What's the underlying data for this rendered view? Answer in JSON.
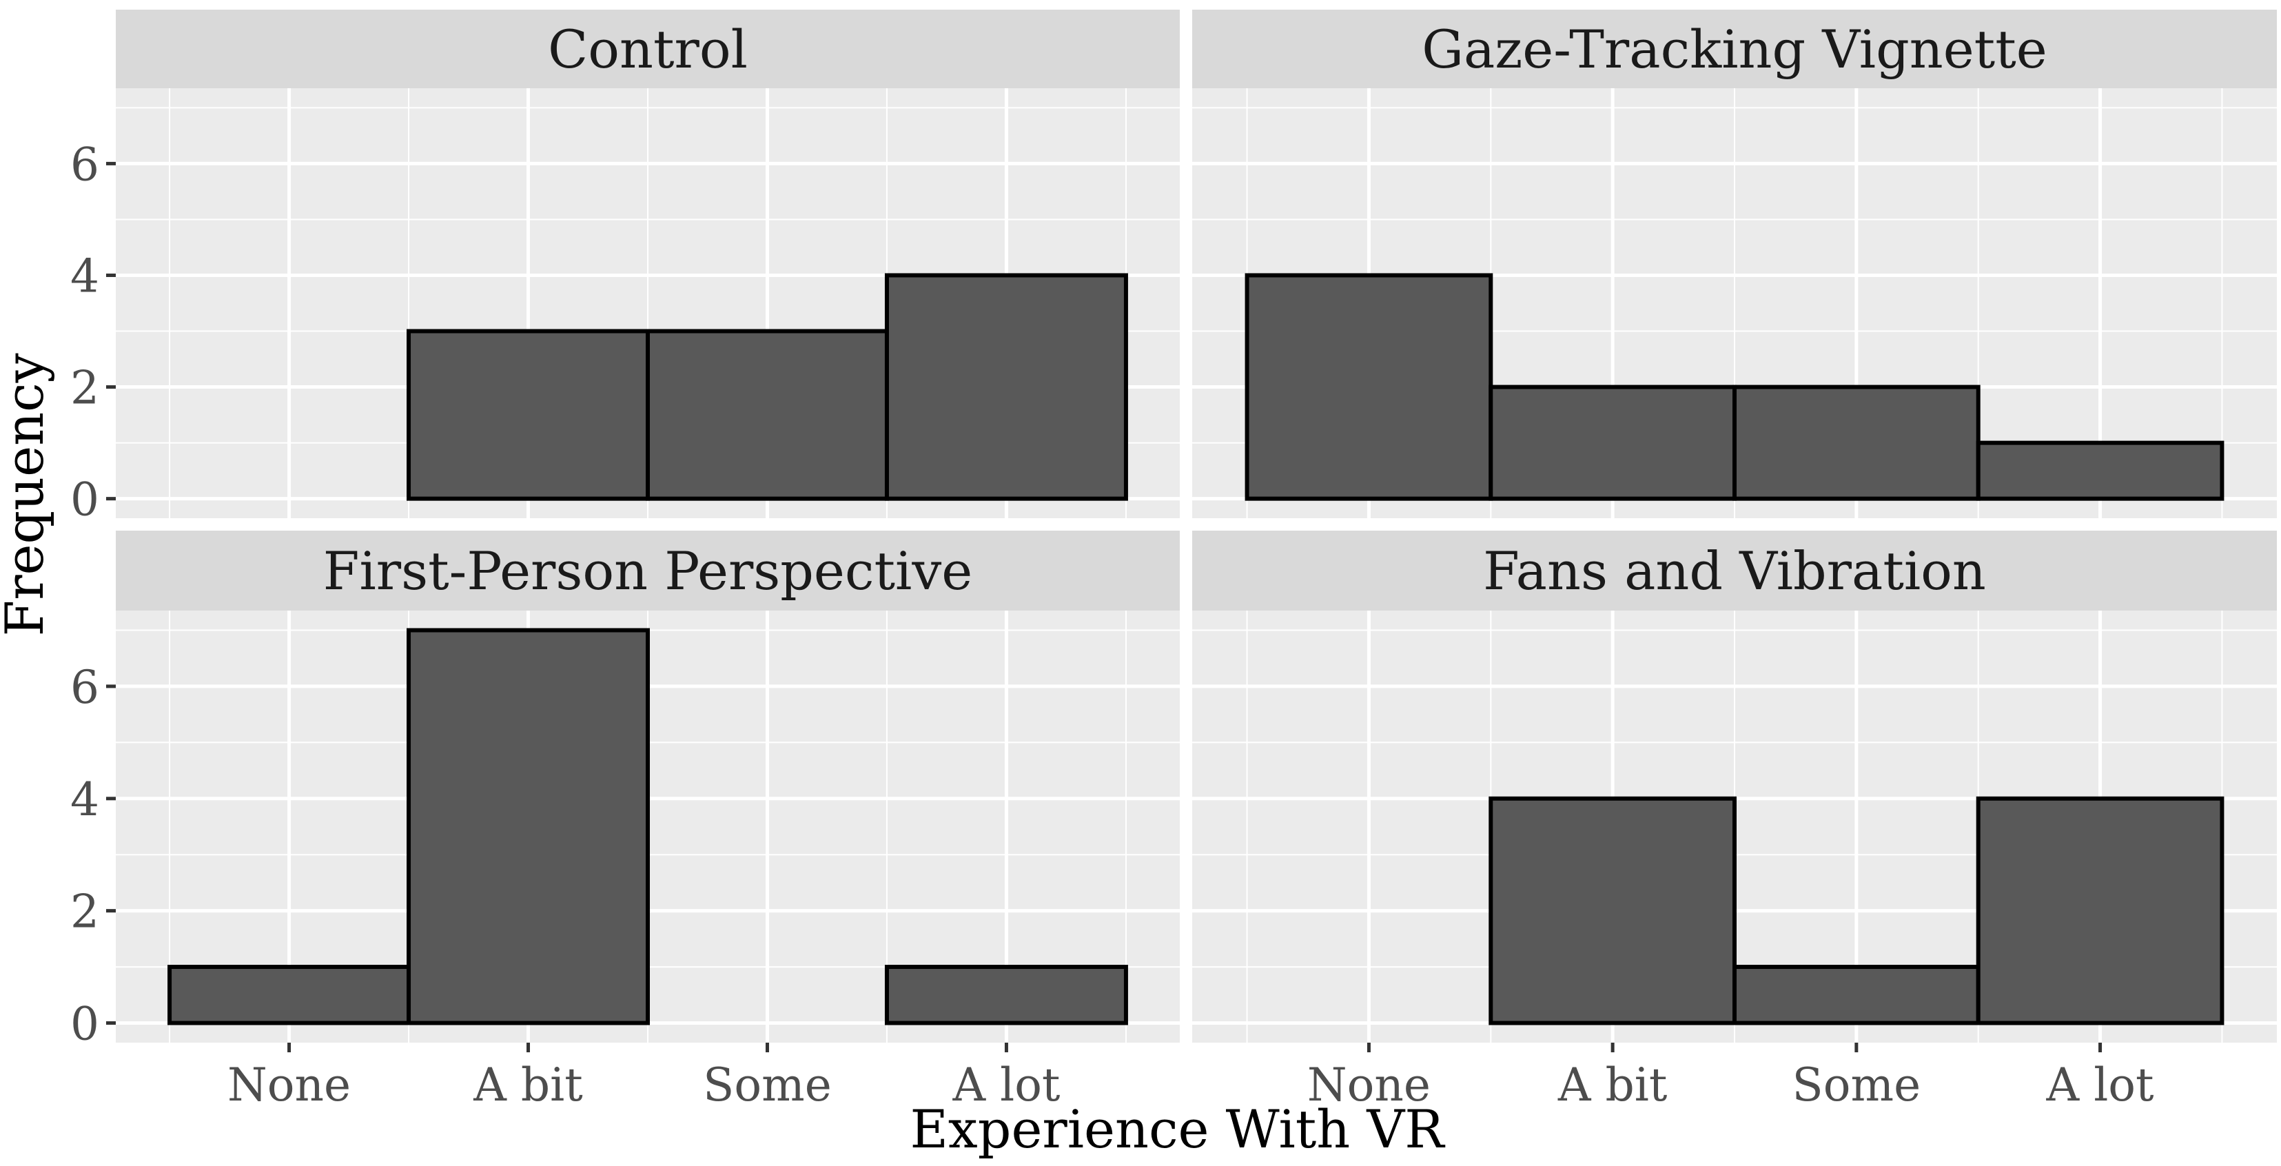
{
  "chart_data": {
    "type": "bar",
    "layout": "facet_wrap 2x2",
    "xlabel": "Experience With VR",
    "ylabel": "Frequency",
    "categories": [
      "None",
      "A bit",
      "Some",
      "A lot"
    ],
    "ylim": [
      -0.35,
      7.35
    ],
    "yticks": [
      0,
      2,
      4,
      6
    ],
    "grid": true,
    "colors": {
      "panel_bg": "#ebebeb",
      "strip_bg": "#d9d9d9",
      "grid": "#ffffff",
      "bar_fill": "#595959",
      "bar_outline": "#000000"
    },
    "panels": [
      {
        "title": "Control",
        "values": [
          0,
          3,
          3,
          4
        ]
      },
      {
        "title": "Gaze-Tracking Vignette",
        "values": [
          4,
          2,
          2,
          1
        ]
      },
      {
        "title": "First-Person Perspective",
        "values": [
          1,
          7,
          0,
          1
        ]
      },
      {
        "title": "Fans and Vibration",
        "values": [
          0,
          4,
          1,
          4
        ]
      }
    ]
  }
}
